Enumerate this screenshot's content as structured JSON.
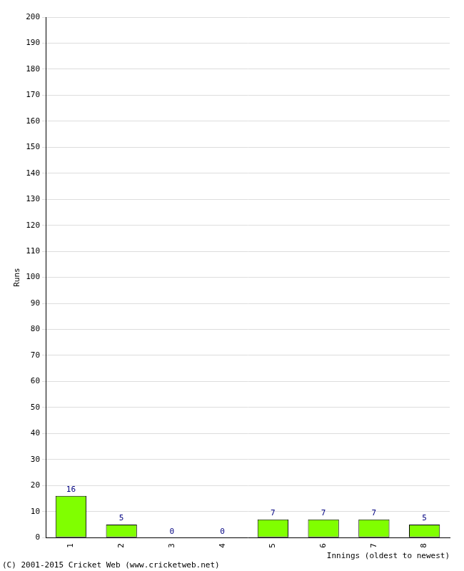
{
  "chart_data": {
    "type": "bar",
    "categories": [
      "1",
      "2",
      "3",
      "4",
      "5",
      "6",
      "7",
      "8"
    ],
    "values": [
      16,
      5,
      0,
      0,
      7,
      7,
      7,
      5
    ],
    "color": "#80ff00",
    "x_label": "Innings (oldest to newest)",
    "y_label": "Runs",
    "annotations": [
      "(C) 2001-2015 Cricket Web (www.cricketweb.net)"
    ],
    "ylim": [
      0,
      200
    ],
    "yticks": [
      0,
      10,
      20,
      30,
      40,
      50,
      60,
      70,
      80,
      90,
      100,
      110,
      120,
      130,
      140,
      150,
      160,
      170,
      180,
      190,
      200
    ],
    "grid": true,
    "data_labels": true
  }
}
